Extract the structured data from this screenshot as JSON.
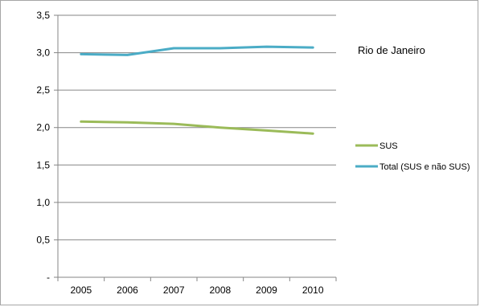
{
  "chart_data": {
    "type": "line",
    "title": "Rio de Janeiro",
    "xlabel": "",
    "ylabel": "",
    "categories": [
      "2005",
      "2006",
      "2007",
      "2008",
      "2009",
      "2010"
    ],
    "y_tick_labels": [
      "-",
      "0,5",
      "1,0",
      "1,5",
      "2,0",
      "2,5",
      "3,0",
      "3,5"
    ],
    "ylim": [
      0,
      3.5
    ],
    "grid": true,
    "legend_position": "right",
    "series": [
      {
        "name": "SUS",
        "color": "#9bbb59",
        "values": [
          2.08,
          2.07,
          2.05,
          2.0,
          1.96,
          1.92
        ]
      },
      {
        "name": "Total (SUS e não SUS)",
        "color": "#4bacc6",
        "values": [
          2.98,
          2.97,
          3.06,
          3.06,
          3.08,
          3.07
        ]
      }
    ]
  }
}
